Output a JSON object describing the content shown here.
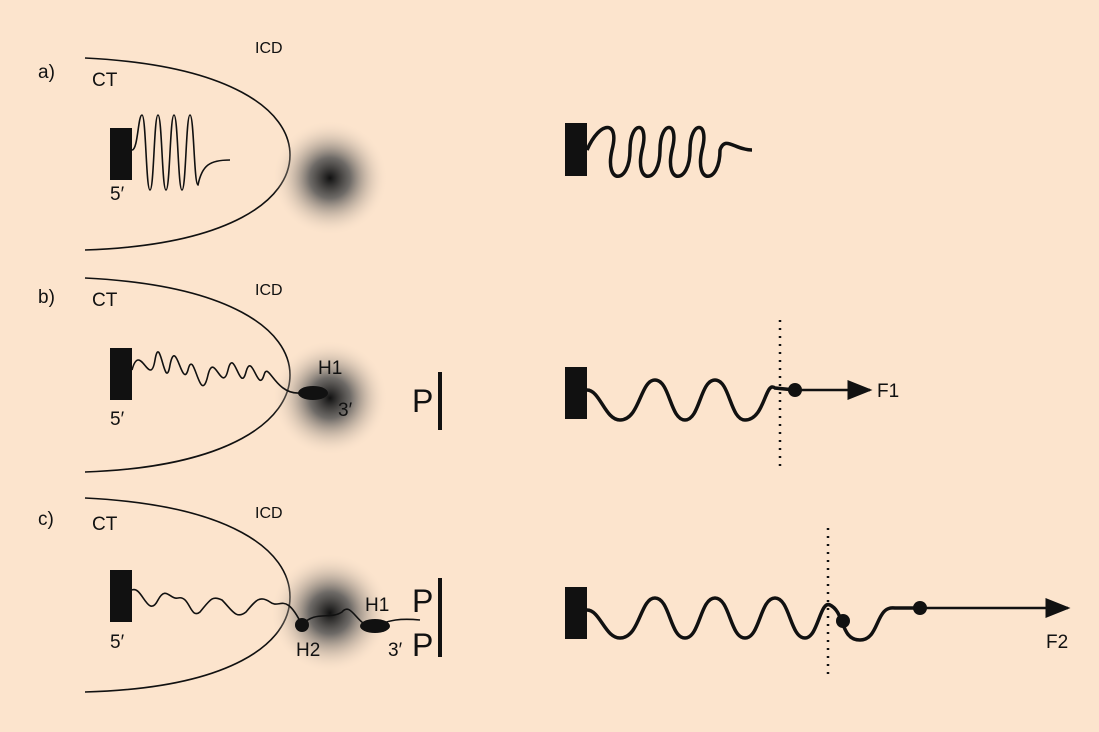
{
  "panels": [
    {
      "label": "a)",
      "ct": "CT",
      "icd": "ICD",
      "five_prime": "5′"
    },
    {
      "label": "b)",
      "ct": "CT",
      "icd": "ICD",
      "five_prime": "5′",
      "h1": "H1",
      "three_prime": "3′",
      "p": "P",
      "force": "F1"
    },
    {
      "label": "c)",
      "ct": "CT",
      "icd": "ICD",
      "five_prime": "5′",
      "h2": "H2",
      "h1": "H1",
      "three_prime": "3′",
      "p_top": "P",
      "p_bottom": "P",
      "force": "F2"
    }
  ]
}
